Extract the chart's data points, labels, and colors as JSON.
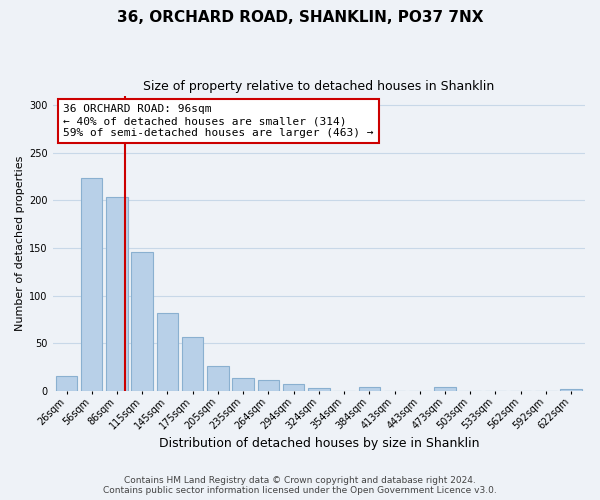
{
  "title1": "36, ORCHARD ROAD, SHANKLIN, PO37 7NX",
  "title2": "Size of property relative to detached houses in Shanklin",
  "xlabel": "Distribution of detached houses by size in Shanklin",
  "ylabel": "Number of detached properties",
  "bar_labels": [
    "26sqm",
    "56sqm",
    "86sqm",
    "115sqm",
    "145sqm",
    "175sqm",
    "205sqm",
    "235sqm",
    "264sqm",
    "294sqm",
    "324sqm",
    "354sqm",
    "384sqm",
    "413sqm",
    "443sqm",
    "473sqm",
    "503sqm",
    "533sqm",
    "562sqm",
    "592sqm",
    "622sqm"
  ],
  "bar_values": [
    16,
    224,
    204,
    146,
    82,
    57,
    26,
    14,
    11,
    7,
    3,
    0,
    4,
    0,
    0,
    4,
    0,
    0,
    0,
    0,
    2
  ],
  "bar_color": "#b8d0e8",
  "bar_edge_color": "#8ab0d0",
  "annotation_title": "36 ORCHARD ROAD: 96sqm",
  "annotation_line1": "← 40% of detached houses are smaller (314)",
  "annotation_line2": "59% of semi-detached houses are larger (463) →",
  "annotation_box_color": "#ffffff",
  "annotation_box_edge": "#cc0000",
  "redline_color": "#cc0000",
  "ylim": [
    0,
    310
  ],
  "yticks": [
    0,
    50,
    100,
    150,
    200,
    250,
    300
  ],
  "footer1": "Contains HM Land Registry data © Crown copyright and database right 2024.",
  "footer2": "Contains public sector information licensed under the Open Government Licence v3.0.",
  "background_color": "#eef2f7",
  "plot_background_color": "#eef2f7",
  "grid_color": "#c8d8e8",
  "title1_fontsize": 11,
  "title2_fontsize": 9,
  "xlabel_fontsize": 9,
  "ylabel_fontsize": 8,
  "tick_fontsize": 7,
  "annot_fontsize": 8,
  "footer_fontsize": 6.5
}
